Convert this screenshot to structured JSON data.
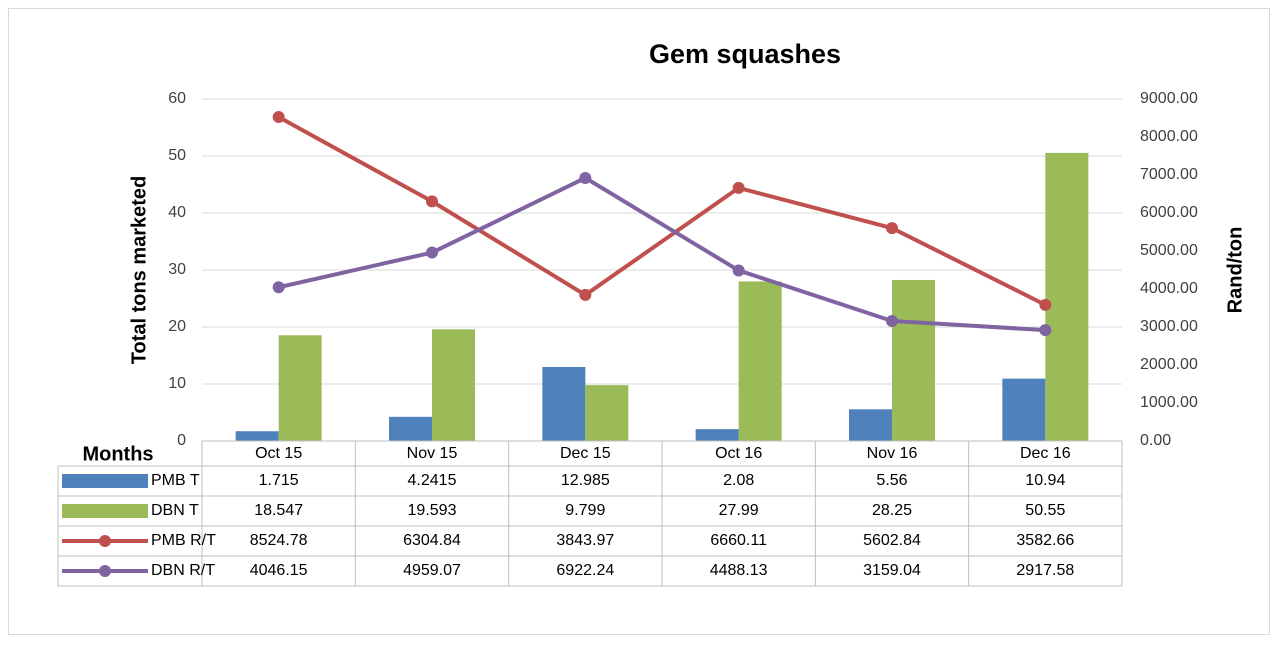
{
  "chart_data": {
    "type": "bar_line_table",
    "title": "Gem squashes",
    "ylabel": "Total tons marketed",
    "y2label": "Rand/ton",
    "xlabel": "Months",
    "categories": [
      "Oct 15",
      "Nov 15",
      "Dec 15",
      "Oct 16",
      "Nov 16",
      "Dec 16"
    ],
    "series": [
      {
        "name": "PMB T",
        "type": "bar",
        "color": "#4f81bd",
        "values": [
          1.715,
          4.2415,
          12.985,
          2.08,
          5.56,
          10.94
        ]
      },
      {
        "name": "DBN T",
        "type": "bar",
        "color": "#9bbb59",
        "values": [
          18.547,
          19.593,
          9.799,
          27.99,
          28.25,
          50.55
        ]
      },
      {
        "name": "PMB R/T",
        "type": "line",
        "axis": "y2",
        "color": "#c0504d",
        "values": [
          8524.78,
          6304.84,
          3843.97,
          6660.11,
          5602.84,
          3582.66
        ]
      },
      {
        "name": "DBN R/T",
        "type": "line",
        "axis": "y2",
        "color": "#8064a2",
        "values": [
          4046.15,
          4959.07,
          6922.24,
          4488.13,
          3159.04,
          2917.58
        ]
      }
    ],
    "ylim": [
      0,
      60
    ],
    "yticks": [
      0,
      10,
      20,
      30,
      40,
      50,
      60
    ],
    "y2lim": [
      0,
      9000
    ],
    "y2ticks": [
      {
        "value": 0,
        "label": "0.00"
      },
      {
        "value": 1000,
        "label": "1000.00"
      },
      {
        "value": 2000,
        "label": "2000.00"
      },
      {
        "value": 3000,
        "label": "3000.00"
      },
      {
        "value": 4000,
        "label": "4000.00"
      },
      {
        "value": 5000,
        "label": "5000.00"
      },
      {
        "value": 6000,
        "label": "6000.00"
      },
      {
        "value": 7000,
        "label": "7000.00"
      },
      {
        "value": 8000,
        "label": "8000.00"
      },
      {
        "value": 9000,
        "label": "9000.00"
      }
    ],
    "grid": true
  }
}
